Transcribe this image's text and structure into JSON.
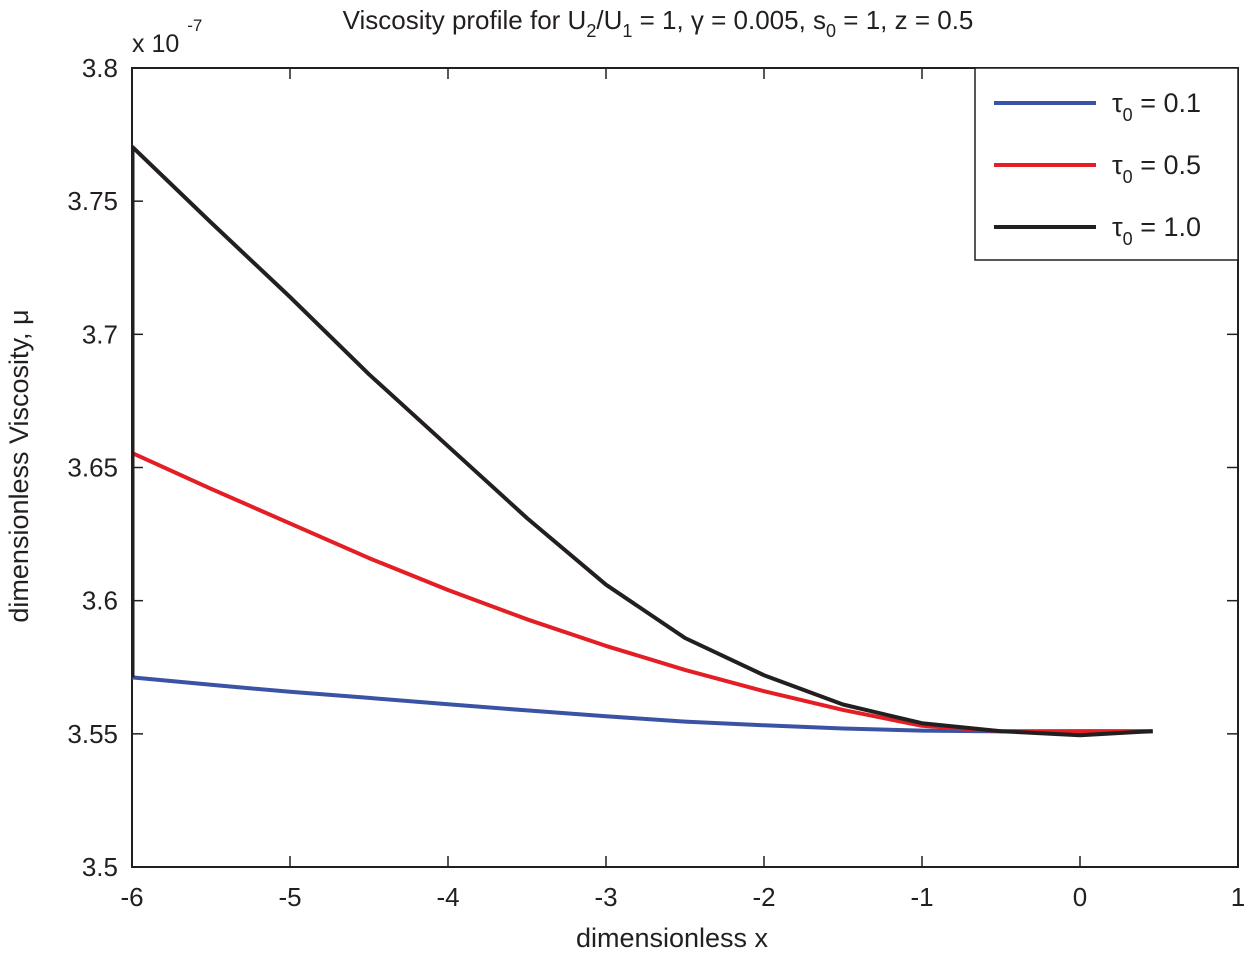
{
  "chart_data": {
    "type": "line",
    "title_main": "Viscosity profile for U",
    "title_sub1": "2",
    "title_mid1": "/U",
    "title_sub2": "1",
    "title_mid2": " = 1,  γ = 0.005, s",
    "title_sub3": "0",
    "title_end": " = 1, z = 0.5",
    "xlabel": "dimensionless x",
    "ylabel": "dimensionless Viscosity, μ",
    "y_multiplier_base": "x 10",
    "y_multiplier_exp": "-7",
    "xlim": [
      -6,
      1
    ],
    "ylim": [
      3.5,
      3.8
    ],
    "x_ticks": [
      -6,
      -5,
      -4,
      -3,
      -2,
      -1,
      0,
      1
    ],
    "x_tick_labels": [
      "-6",
      "-5",
      "-4",
      "-3",
      "-2",
      "-1",
      "0",
      "1"
    ],
    "y_ticks": [
      3.5,
      3.55,
      3.6,
      3.65,
      3.7,
      3.75,
      3.8
    ],
    "y_tick_labels": [
      "3.5",
      "3.55",
      "3.6",
      "3.65",
      "3.7",
      "3.75",
      "3.8"
    ],
    "legend_position": "top-right",
    "grid": false,
    "series": [
      {
        "name": "τ0 = 0.1",
        "legend_symbol": "τ",
        "legend_sub": "0",
        "legend_value": " = 0.1",
        "color": "#3a53a4",
        "x": [
          -6.0,
          -5.5,
          -5.0,
          -4.5,
          -4.0,
          -3.5,
          -3.0,
          -2.5,
          -2.0,
          -1.5,
          -1.0,
          -0.5,
          0.0,
          0.46
        ],
        "y": [
          3.5712,
          3.5684,
          3.5658,
          3.5635,
          3.5611,
          3.5588,
          3.5566,
          3.5546,
          3.5532,
          3.552,
          3.5512,
          3.5509,
          3.551,
          3.551
        ]
      },
      {
        "name": "τ0 = 0.5",
        "legend_symbol": "τ",
        "legend_sub": "0",
        "legend_value": " = 0.5",
        "color": "#e31e24",
        "x": [
          -6.0,
          -5.5,
          -5.0,
          -4.5,
          -4.0,
          -3.5,
          -3.0,
          -2.5,
          -2.0,
          -1.5,
          -1.0,
          -0.5,
          0.0,
          0.46
        ],
        "y": [
          3.6555,
          3.642,
          3.629,
          3.616,
          3.604,
          3.593,
          3.583,
          3.574,
          3.566,
          3.559,
          3.553,
          3.551,
          3.551,
          3.551
        ]
      },
      {
        "name": "τ0 = 1.0",
        "legend_symbol": "τ",
        "legend_sub": "0",
        "legend_value": " = 1.0",
        "color": "#231f20",
        "x": [
          -6.0,
          -5.5,
          -5.0,
          -4.5,
          -4.0,
          -3.5,
          -3.0,
          -2.5,
          -2.0,
          -1.5,
          -1.0,
          -0.5,
          0.0,
          0.46
        ],
        "y": [
          3.7705,
          3.742,
          3.714,
          3.685,
          3.658,
          3.631,
          3.606,
          3.586,
          3.572,
          3.561,
          3.554,
          3.551,
          3.5495,
          3.551
        ]
      }
    ]
  }
}
